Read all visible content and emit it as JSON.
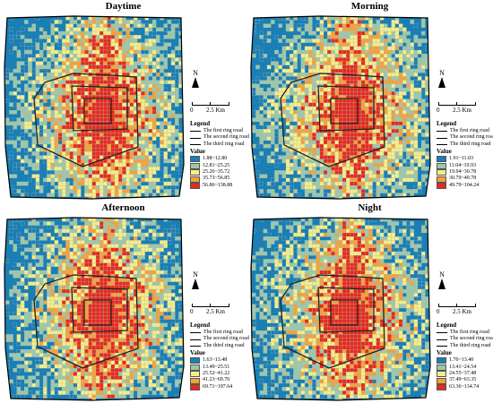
{
  "colors": {
    "background_class": "#1a7fb4",
    "classes": [
      "#1a7fb4",
      "#9cc8a8",
      "#f6ee86",
      "#f3a13a",
      "#e52a1d"
    ],
    "road": "#222222",
    "grid_line": "#bcbcbc"
  },
  "common": {
    "north_label": "N",
    "scale_zero": "0",
    "scale_label": "2.5 Km",
    "legend_title": "Legend",
    "roads": [
      "The first ring road",
      "The second ring road",
      "The third ring road"
    ],
    "value_title": "Value"
  },
  "panels": [
    {
      "title": "Daytime",
      "classes": [
        "1.88~12.80",
        "12.81~25.25",
        "25.26~35.72",
        "35.73~56.85",
        "56.86~138.88"
      ],
      "seed": 11
    },
    {
      "title": "Morning",
      "classes": [
        "1.91~11.03",
        "11.04~19.93",
        "19.94~30.78",
        "30.79~49.78",
        "49.79~104.24"
      ],
      "seed": 23
    },
    {
      "title": "Afternoon",
      "classes": [
        "1.63~13.48",
        "13.49~25.51",
        "25.52~41.22",
        "41.23~69.70",
        "69.71~197.64"
      ],
      "seed": 37
    },
    {
      "title": "Night",
      "classes": [
        "1.76~13.40",
        "13.41~24.54",
        "24.55~37.48",
        "37.49~63.35",
        "63.36~134.74"
      ],
      "seed": 51
    }
  ]
}
